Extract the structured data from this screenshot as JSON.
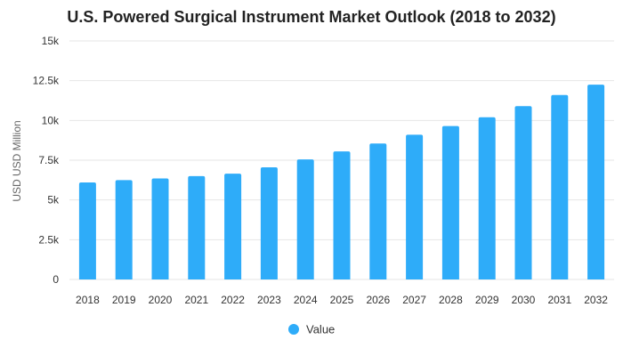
{
  "chart_data": {
    "type": "bar",
    "title": "U.S. Powered Surgical Instrument Market Outlook (2018 to 2032)",
    "xlabel": "",
    "ylabel": "USD USD Million",
    "ylim": [
      0,
      15000
    ],
    "yticks": [
      0,
      2500,
      5000,
      7500,
      10000,
      12500,
      15000
    ],
    "ytick_labels": [
      "0",
      "2.5k",
      "5k",
      "7.5k",
      "10k",
      "12.5k",
      "15k"
    ],
    "categories": [
      "2018",
      "2019",
      "2020",
      "2021",
      "2022",
      "2023",
      "2024",
      "2025",
      "2026",
      "2027",
      "2028",
      "2029",
      "2030",
      "2031",
      "2032"
    ],
    "series": [
      {
        "name": "Value",
        "color": "#2eacf9",
        "values": [
          6100,
          6250,
          6350,
          6500,
          6650,
          7050,
          7550,
          8050,
          8550,
          9100,
          9650,
          10200,
          10900,
          11600,
          12250
        ]
      }
    ],
    "grid": true,
    "legend": "bottom-center"
  }
}
